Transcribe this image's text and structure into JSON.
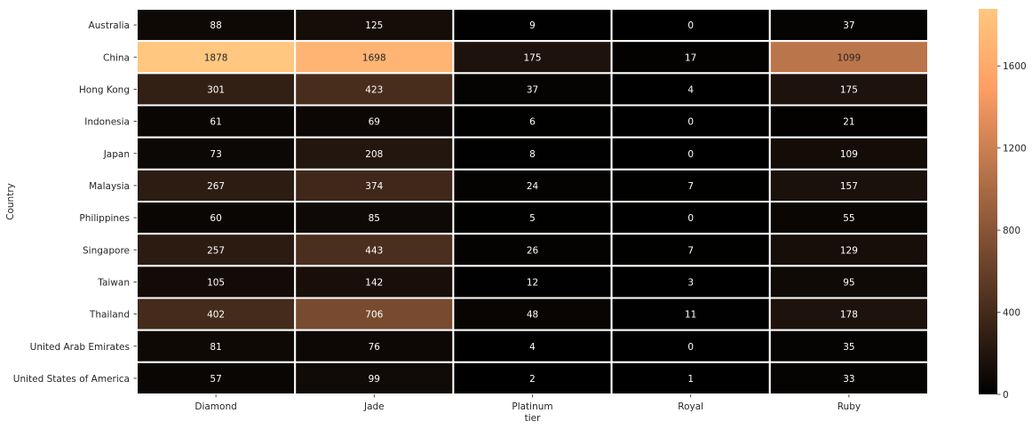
{
  "chart_data": {
    "type": "heatmap",
    "title": "",
    "xlabel": "tier",
    "ylabel": "Country",
    "x_categories": [
      "Diamond",
      "Jade",
      "Platinum",
      "Royal",
      "Ruby"
    ],
    "y_categories": [
      "Australia",
      "China",
      "Hong Kong",
      "Indonesia",
      "Japan",
      "Malaysia",
      "Philippines",
      "Singapore",
      "Taiwan",
      "Thailand",
      "United Arab Emirates",
      "United States of America"
    ],
    "values": [
      [
        88,
        125,
        9,
        0,
        37
      ],
      [
        1878,
        1698,
        175,
        17,
        1099
      ],
      [
        301,
        423,
        37,
        4,
        175
      ],
      [
        61,
        69,
        6,
        0,
        21
      ],
      [
        73,
        208,
        8,
        0,
        109
      ],
      [
        267,
        374,
        24,
        7,
        157
      ],
      [
        60,
        85,
        5,
        0,
        55
      ],
      [
        257,
        443,
        26,
        7,
        129
      ],
      [
        105,
        142,
        12,
        3,
        95
      ],
      [
        402,
        706,
        48,
        11,
        178
      ],
      [
        81,
        76,
        4,
        0,
        35
      ],
      [
        57,
        99,
        2,
        1,
        33
      ]
    ],
    "colormap": "copper",
    "colorbar": {
      "vmin": 0,
      "vmax": 1878,
      "ticks": [
        0,
        400,
        800,
        1200,
        1600
      ]
    },
    "annotations": true,
    "grid": false,
    "linecolor": "#ffffff"
  }
}
